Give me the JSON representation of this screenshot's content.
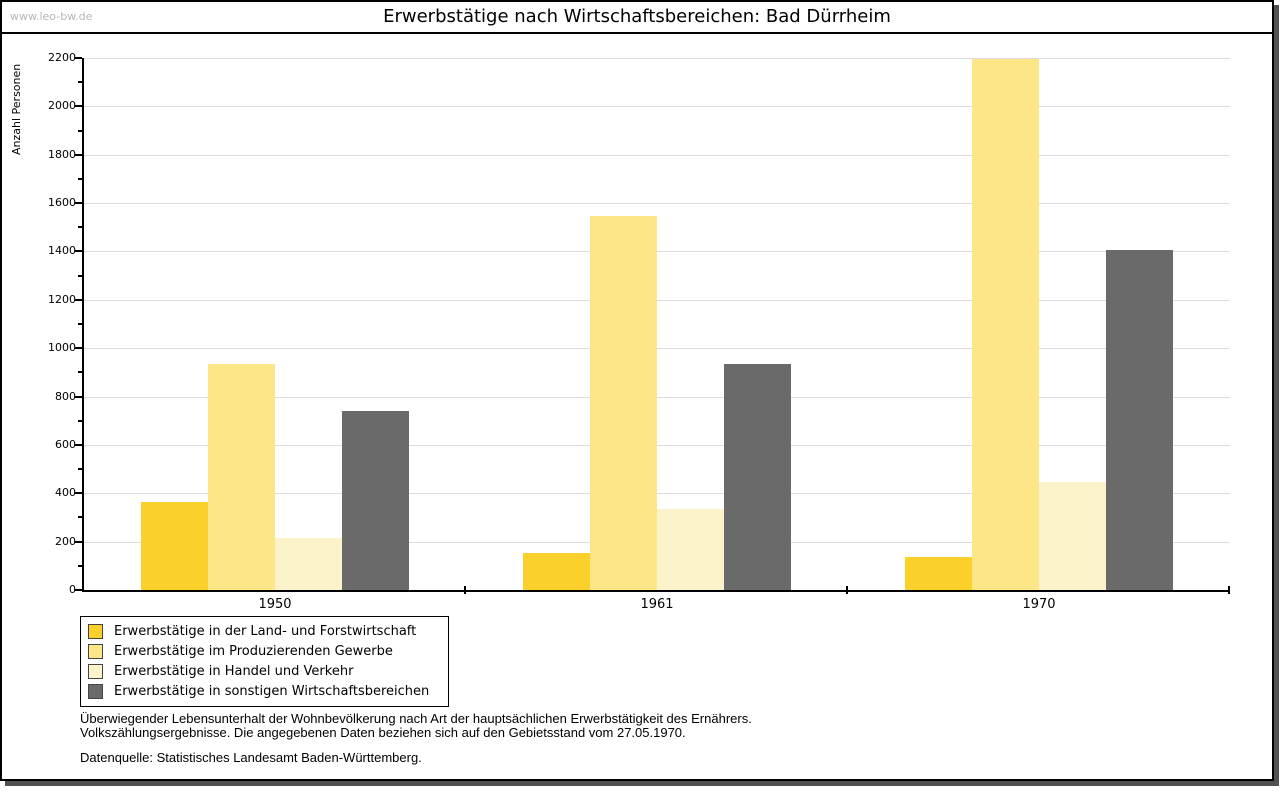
{
  "page": {
    "watermark": "www.leo-bw.de",
    "title": "Erwerbstätige nach Wirtschaftsbereichen: Bad Dürrheim"
  },
  "chart_data": {
    "type": "bar",
    "title": "Erwerbstätige nach Wirtschaftsbereichen: Bad Dürrheim",
    "ylabel": "Anzahl Personen",
    "xlabel": "",
    "ylim": [
      0,
      2200
    ],
    "ytick_step": 200,
    "yminor_step": 100,
    "grid": true,
    "legend_position": "bottom-left",
    "categories": [
      "1950",
      "1961",
      "1970"
    ],
    "series": [
      {
        "name": "Erwerbstätige in der Land- und Forstwirtschaft",
        "color": "#fbd02a",
        "values": [
          365,
          155,
          135
        ]
      },
      {
        "name": "Erwerbstätige im Produzierenden Gewerbe",
        "color": "#fce687",
        "values": [
          935,
          1545,
          2195
        ]
      },
      {
        "name": "Erwerbstätige in Handel und Verkehr",
        "color": "#fdf3ca",
        "values": [
          215,
          335,
          445
        ]
      },
      {
        "name": "Erwerbstätige in sonstigen Wirtschaftsbereichen",
        "color": "#6a6a6a",
        "values": [
          740,
          935,
          1405
        ]
      }
    ]
  },
  "footer": {
    "line1": "Überwiegender Lebensunterhalt der Wohnbevölkerung nach Art der hauptsächlichen Erwerbstätigkeit des Ernährers.",
    "line2": "Volkszählungsergebnisse. Die angegebenen Daten beziehen sich auf den Gebietsstand vom 27.05.1970.",
    "source": "Datenquelle: Statistisches Landesamt Baden-Württemberg."
  }
}
